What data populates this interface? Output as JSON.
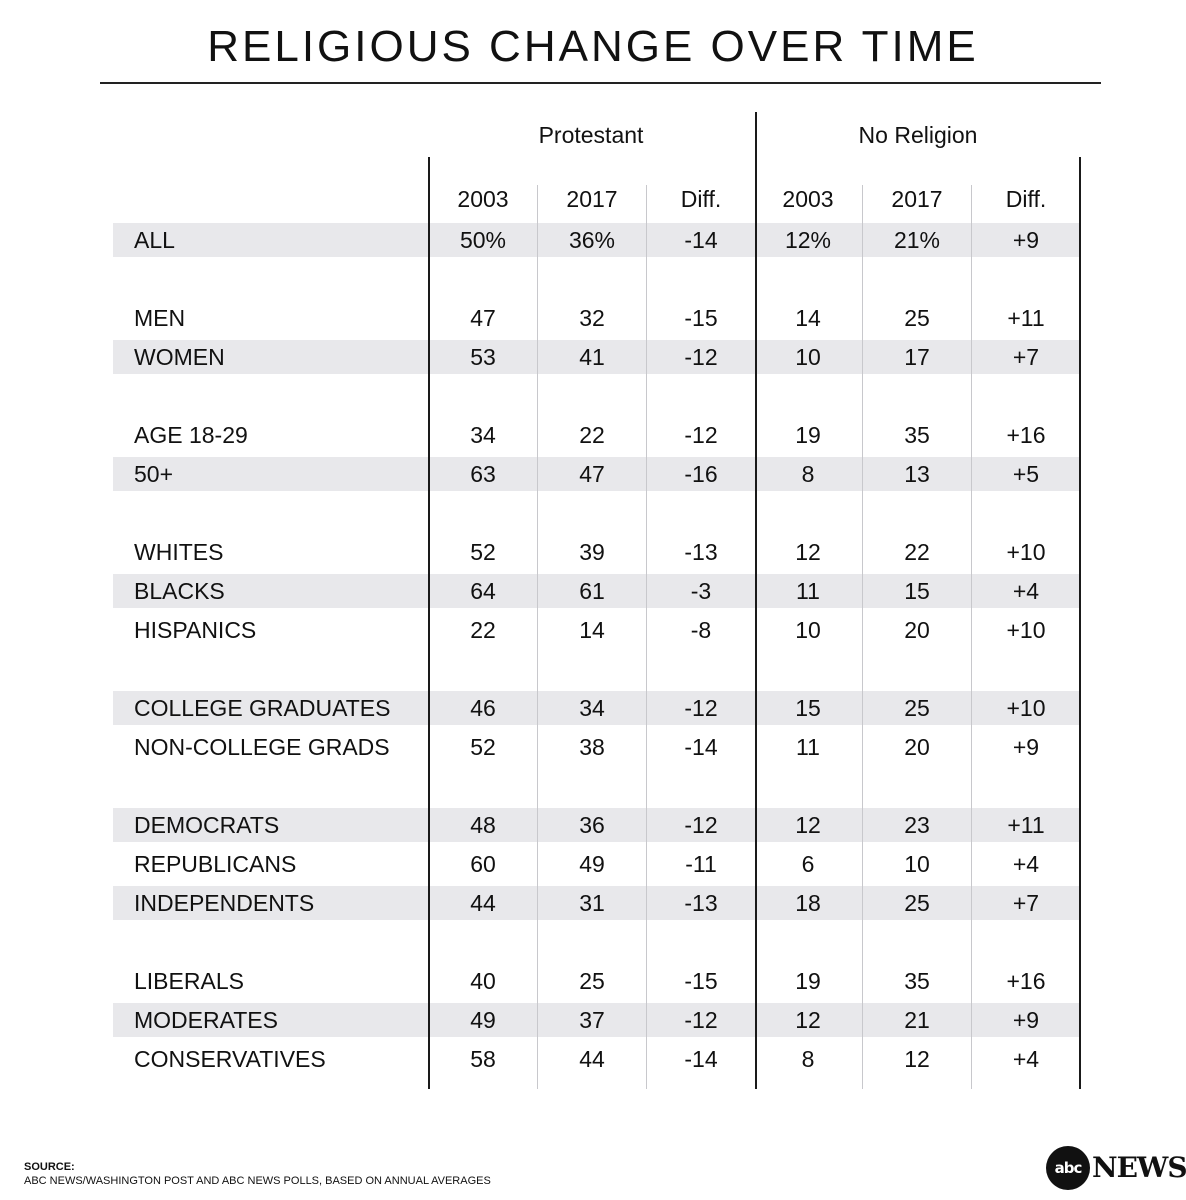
{
  "title": "RELIGIOUS CHANGE OVER TIME",
  "chart_data": {
    "type": "table",
    "title": "RELIGIOUS CHANGE OVER TIME",
    "groups": [
      {
        "name": "Protestant",
        "columns": [
          "2003",
          "2017",
          "Diff."
        ]
      },
      {
        "name": "No Religion",
        "columns": [
          "2003",
          "2017",
          "Diff."
        ]
      }
    ],
    "rows": [
      {
        "label": "ALL",
        "values": [
          "50%",
          "36%",
          "-14",
          "12%",
          "21%",
          "+9"
        ]
      },
      {
        "label": "MEN",
        "values": [
          "47",
          "32",
          "-15",
          "14",
          "25",
          "+11"
        ]
      },
      {
        "label": "WOMEN",
        "values": [
          "53",
          "41",
          "-12",
          "10",
          "17",
          "+7"
        ]
      },
      {
        "label": "AGE 18-29",
        "values": [
          "34",
          "22",
          "-12",
          "19",
          "35",
          "+16"
        ]
      },
      {
        "label": "50+",
        "values": [
          "63",
          "47",
          "-16",
          "8",
          "13",
          "+5"
        ]
      },
      {
        "label": "WHITES",
        "values": [
          "52",
          "39",
          "-13",
          "12",
          "22",
          "+10"
        ]
      },
      {
        "label": "BLACKS",
        "values": [
          "64",
          "61",
          "-3",
          "11",
          "15",
          "+4"
        ]
      },
      {
        "label": "HISPANICS",
        "values": [
          "22",
          "14",
          "-8",
          "10",
          "20",
          "+10"
        ]
      },
      {
        "label": "COLLEGE GRADUATES",
        "values": [
          "46",
          "34",
          "-12",
          "15",
          "25",
          "+10"
        ]
      },
      {
        "label": "NON-COLLEGE GRADS",
        "values": [
          "52",
          "38",
          "-14",
          "11",
          "20",
          "+9"
        ]
      },
      {
        "label": "DEMOCRATS",
        "values": [
          "48",
          "36",
          "-12",
          "12",
          "23",
          "+11"
        ]
      },
      {
        "label": "REPUBLICANS",
        "values": [
          "60",
          "49",
          "-11",
          "6",
          "10",
          "+4"
        ]
      },
      {
        "label": "INDEPENDENTS",
        "values": [
          "44",
          "31",
          "-13",
          "18",
          "25",
          "+7"
        ]
      },
      {
        "label": "LIBERALS",
        "values": [
          "40",
          "25",
          "-15",
          "19",
          "35",
          "+16"
        ]
      },
      {
        "label": "MODERATES",
        "values": [
          "49",
          "37",
          "-12",
          "12",
          "21",
          "+9"
        ]
      },
      {
        "label": "CONSERVATIVES",
        "values": [
          "58",
          "44",
          "-14",
          "8",
          "12",
          "+4"
        ]
      }
    ],
    "shaded_rows": [
      "ALL",
      "WOMEN",
      "50+",
      "BLACKS",
      "COLLEGE GRADUATES",
      "DEMOCRATS",
      "INDEPENDENTS",
      "MODERATES"
    ]
  },
  "source": {
    "label": "SOURCE:",
    "text": "ABC NEWS/WASHINGTON POST AND ABC NEWS POLLS, BASED ON ANNUAL AVERAGES"
  },
  "logo": {
    "mark": "abc",
    "text": "NEWS"
  },
  "colors": {
    "band": "#e8e8eb",
    "rule": "#1a1a1a",
    "light_rule": "#c8c8cc",
    "text": "#111111"
  }
}
